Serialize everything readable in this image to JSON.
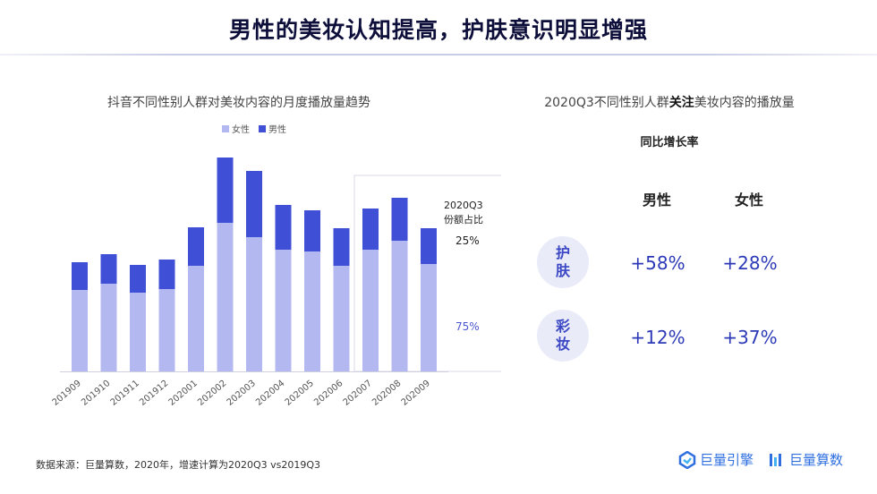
{
  "page": {
    "title": "男性的美妆认知提高，护肤意识明显增强",
    "footnote": "数据来源：巨量算数，2020年，增速计算为2020Q3 vs2019Q3",
    "logos": [
      "巨量引擎",
      "巨量算数"
    ]
  },
  "colors": {
    "female": "#b4b8f0",
    "male": "#3f4fd6",
    "accent": "#2d3ab8",
    "badge_bg": "#e9ebf8"
  },
  "chart_data": {
    "type": "bar",
    "stacked": true,
    "title": "抖音不同性别人群对美妆内容的月度播放量趋势",
    "categories": [
      "201909",
      "201910",
      "201911",
      "201912",
      "202001",
      "202002",
      "202003",
      "202004",
      "202005",
      "202006",
      "202007",
      "202008",
      "202009"
    ],
    "series": [
      {
        "name": "女性",
        "values": [
          91,
          98,
          88,
          92,
          118,
          166,
          150,
          136,
          134,
          118,
          136,
          146,
          120
        ]
      },
      {
        "name": "男性",
        "values": [
          31,
          33,
          31,
          33,
          43,
          73,
          74,
          50,
          46,
          42,
          46,
          48,
          40
        ]
      }
    ],
    "legend": [
      "女性",
      "男性"
    ],
    "legend_position": "top",
    "highlight_range": [
      "202007",
      "202009"
    ],
    "share_title": [
      "2020Q3",
      "份额占比"
    ],
    "share": {
      "male": "25%",
      "female": "75%"
    },
    "grid": false
  },
  "right_panel": {
    "title_pre": "2020Q3不同性别人群",
    "title_bold": "关注",
    "title_post": "美妆内容的播放量",
    "yoy_label": "同比增长率",
    "col_male": "男性",
    "col_female": "女性",
    "rows": [
      {
        "label": "护\n肤",
        "male": "+58%",
        "female": "+28%"
      },
      {
        "label": "彩\n妆",
        "male": "+12%",
        "female": "+37%"
      }
    ]
  }
}
